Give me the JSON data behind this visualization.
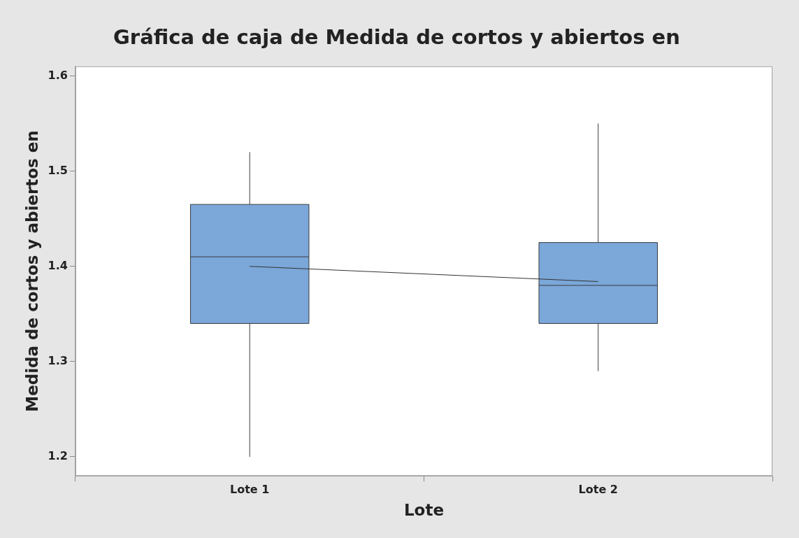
{
  "chart_data": {
    "type": "box",
    "title": "Gráfica de caja de Medida de cortos y abiertos en",
    "xlabel": "Lote",
    "ylabel": "Medida de cortos y abiertos en",
    "categories": [
      "Lote 1",
      "Lote 2"
    ],
    "series": [
      {
        "type": "box",
        "color": "#7ba7d9",
        "boxes": [
          {
            "low": 1.2,
            "q1": 1.34,
            "median": 1.41,
            "q3": 1.465,
            "high": 1.52
          },
          {
            "low": 1.29,
            "q1": 1.34,
            "median": 1.38,
            "q3": 1.425,
            "high": 1.55
          }
        ]
      },
      {
        "type": "line",
        "color": "#333333",
        "x": [
          "Lote 1",
          "Lote 2"
        ],
        "values": [
          1.4,
          1.384
        ]
      }
    ],
    "ylim": [
      1.18,
      1.61
    ],
    "yticks": [
      1.2,
      1.3,
      1.4,
      1.5,
      1.6
    ]
  }
}
